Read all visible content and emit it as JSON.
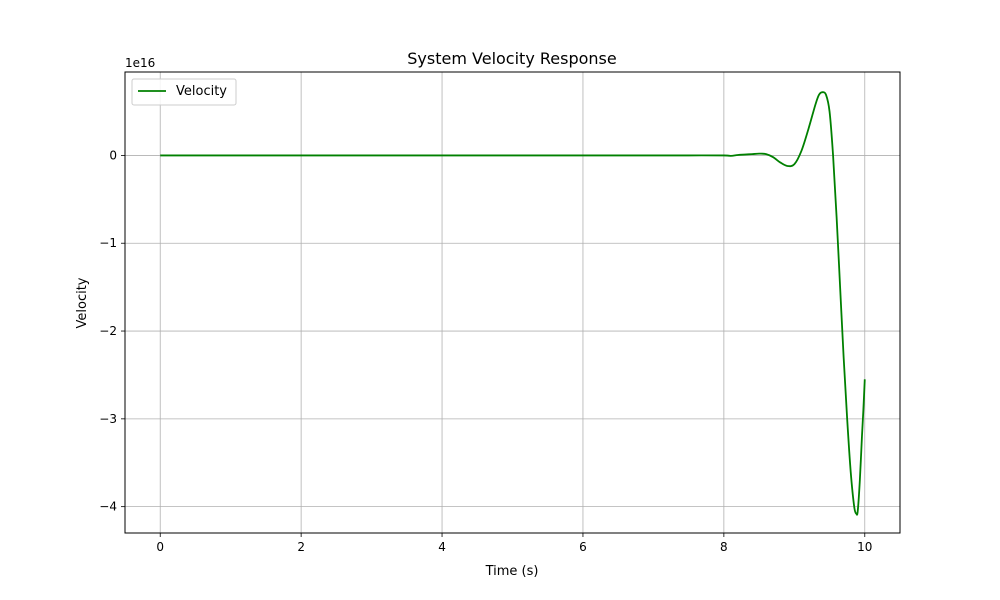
{
  "chart_data": {
    "type": "line",
    "title": "System Velocity Response",
    "xlabel": "Time (s)",
    "ylabel": "Velocity",
    "y_multiplier_label": "1e16",
    "xlim": [
      -0.5,
      10.5
    ],
    "ylim": [
      -4.3,
      0.95
    ],
    "x_ticks": [
      0,
      2,
      4,
      6,
      8,
      10
    ],
    "x_tick_labels": [
      "0",
      "2",
      "4",
      "6",
      "8",
      "10"
    ],
    "y_ticks": [
      0,
      -1,
      -2,
      -3,
      -4
    ],
    "y_tick_labels": [
      "0",
      "−1",
      "−2",
      "−3",
      "−4"
    ],
    "grid": true,
    "legend_position": "upper-left",
    "series": [
      {
        "name": "Velocity",
        "color": "#008000",
        "x": [
          0,
          1,
          2,
          3,
          4,
          5,
          6,
          7,
          7.5,
          8.0,
          8.1,
          8.2,
          8.3,
          8.4,
          8.5,
          8.6,
          8.7,
          8.8,
          8.9,
          9.0,
          9.1,
          9.2,
          9.3,
          9.35,
          9.4,
          9.45,
          9.5,
          9.55,
          9.6,
          9.65,
          9.7,
          9.75,
          9.8,
          9.85,
          9.88,
          9.9,
          9.93,
          9.96,
          9.98,
          10.0
        ],
        "y": [
          0,
          0,
          0,
          0,
          0,
          0,
          0,
          0,
          0,
          0.0,
          -0.005,
          0.005,
          0.01,
          0.015,
          0.02,
          0.015,
          -0.02,
          -0.08,
          -0.12,
          -0.1,
          0.05,
          0.3,
          0.58,
          0.69,
          0.72,
          0.69,
          0.5,
          0.0,
          -0.7,
          -1.5,
          -2.3,
          -3.0,
          -3.6,
          -4.0,
          -4.08,
          -4.05,
          -3.7,
          -3.2,
          -2.9,
          -2.55
        ]
      }
    ]
  }
}
